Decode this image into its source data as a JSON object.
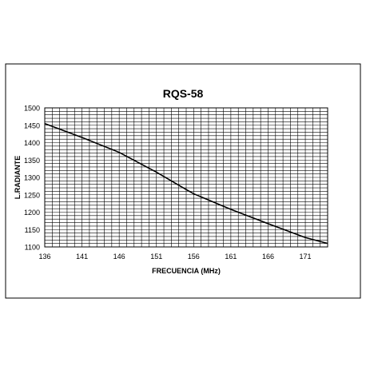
{
  "chart_data": {
    "type": "line",
    "title": "RQS-58",
    "xlabel": "FRECUENCIA  (MHz)",
    "ylabel": "L.RADIANTE",
    "xlim": [
      136,
      174
    ],
    "ylim": [
      1100,
      1500
    ],
    "x_ticks": [
      136,
      141,
      146,
      151,
      156,
      161,
      166,
      171
    ],
    "y_ticks": [
      1500,
      1450,
      1400,
      1350,
      1300,
      1250,
      1200,
      1150,
      1100
    ],
    "x_minor_step": 1,
    "y_minor_step": 10,
    "grid": true,
    "legend": "none",
    "series": [
      {
        "color": "#000000",
        "x": [
          136,
          141,
          146,
          151,
          155,
          156,
          161,
          166,
          171,
          174
        ],
        "y": [
          1455,
          1415,
          1372,
          1315,
          1265,
          1253,
          1208,
          1167,
          1127,
          1110
        ]
      }
    ]
  }
}
